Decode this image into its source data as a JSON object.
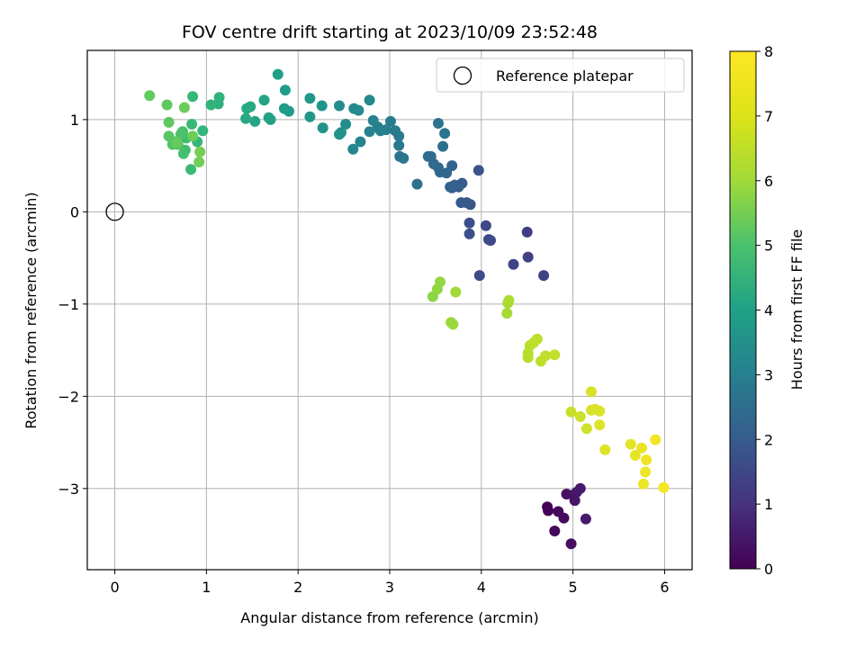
{
  "chart_data": {
    "type": "scatter",
    "title": "FOV centre drift starting at 2023/10/09 23:52:48",
    "xlabel": "Angular distance from reference (arcmin)",
    "ylabel": "Rotation from reference (arcmin)",
    "xlim": [
      -0.3,
      6.3
    ],
    "ylim": [
      -3.88,
      1.75
    ],
    "x_ticks": [
      0,
      1,
      2,
      3,
      4,
      5,
      6
    ],
    "y_ticks": [
      -3,
      -2,
      -1,
      0,
      1
    ],
    "x_tick_labels": [
      "0",
      "1",
      "2",
      "3",
      "4",
      "5",
      "6"
    ],
    "y_tick_labels": [
      "−3",
      "−2",
      "−1",
      "0",
      "1"
    ],
    "grid": true,
    "colormap": "viridis",
    "colorbar": {
      "label": "Hours from first FF file",
      "range": [
        0,
        8
      ],
      "ticks": [
        0,
        1,
        2,
        3,
        4,
        5,
        6,
        7,
        8
      ],
      "tick_labels": [
        "0",
        "1",
        "2",
        "3",
        "4",
        "5",
        "6",
        "7",
        "8"
      ]
    },
    "legend": {
      "position": "upper right",
      "entries": [
        {
          "label": "Reference platepar",
          "marker": "open-circle",
          "color": "#000000"
        }
      ]
    },
    "reference_point": {
      "x": 0,
      "y": 0
    },
    "points": [
      [
        4.72,
        -3.2,
        0.05
      ],
      [
        4.73,
        -3.24,
        0.1
      ],
      [
        4.8,
        -3.46,
        0.15
      ],
      [
        4.84,
        -3.25,
        0.2
      ],
      [
        4.9,
        -3.32,
        0.25
      ],
      [
        4.98,
        -3.6,
        0.3
      ],
      [
        4.93,
        -3.06,
        0.35
      ],
      [
        5.0,
        -3.07,
        0.4
      ],
      [
        5.02,
        -3.13,
        0.45
      ],
      [
        5.04,
        -3.04,
        0.5
      ],
      [
        5.08,
        -3.0,
        0.55
      ],
      [
        5.14,
        -3.33,
        0.6
      ],
      [
        4.5,
        -0.22,
        1.5
      ],
      [
        4.51,
        -0.49,
        1.55
      ],
      [
        4.68,
        -0.69,
        1.6
      ],
      [
        4.35,
        -0.57,
        1.65
      ],
      [
        4.1,
        -0.31,
        1.7
      ],
      [
        4.05,
        -0.15,
        1.75
      ],
      [
        4.08,
        -0.3,
        1.8
      ],
      [
        3.98,
        -0.69,
        1.85
      ],
      [
        3.87,
        -0.12,
        1.9
      ],
      [
        3.87,
        -0.24,
        1.95
      ],
      [
        3.97,
        0.45,
        2.1
      ],
      [
        3.88,
        0.08,
        2.15
      ],
      [
        3.84,
        0.1,
        2.2
      ],
      [
        3.78,
        0.1,
        2.25
      ],
      [
        3.79,
        0.31,
        2.3
      ],
      [
        3.75,
        0.27,
        2.35
      ],
      [
        3.71,
        0.29,
        2.4
      ],
      [
        3.68,
        0.26,
        2.45
      ],
      [
        3.66,
        0.27,
        2.5
      ],
      [
        3.68,
        0.5,
        2.55
      ],
      [
        3.62,
        0.42,
        2.6
      ],
      [
        3.55,
        0.43,
        2.65
      ],
      [
        3.53,
        0.48,
        2.7
      ],
      [
        3.48,
        0.52,
        2.75
      ],
      [
        3.45,
        0.6,
        2.8
      ],
      [
        3.42,
        0.6,
        2.85
      ],
      [
        3.3,
        0.3,
        2.9
      ],
      [
        3.58,
        0.71,
        2.95
      ],
      [
        3.6,
        0.85,
        3.0
      ],
      [
        3.53,
        0.96,
        3.05
      ],
      [
        3.15,
        0.58,
        3.1
      ],
      [
        3.11,
        0.6,
        3.15
      ],
      [
        3.1,
        0.72,
        3.2
      ],
      [
        3.1,
        0.82,
        3.25
      ],
      [
        3.06,
        0.88,
        3.3
      ],
      [
        3.01,
        0.98,
        3.35
      ],
      [
        2.96,
        0.89,
        3.4
      ],
      [
        2.9,
        0.88,
        3.45
      ],
      [
        2.87,
        0.92,
        3.5
      ],
      [
        2.82,
        0.99,
        3.55
      ],
      [
        2.78,
        0.87,
        3.6
      ],
      [
        2.68,
        0.76,
        3.65
      ],
      [
        2.6,
        0.68,
        3.7
      ],
      [
        2.78,
        1.21,
        3.75
      ],
      [
        2.66,
        1.1,
        3.8
      ],
      [
        2.61,
        1.12,
        3.85
      ],
      [
        2.45,
        1.15,
        3.9
      ],
      [
        2.52,
        0.95,
        3.95
      ],
      [
        2.47,
        0.86,
        4.0
      ],
      [
        2.45,
        0.84,
        4.05
      ],
      [
        2.27,
        0.91,
        4.1
      ],
      [
        2.26,
        1.15,
        4.15
      ],
      [
        2.13,
        1.03,
        4.2
      ],
      [
        2.13,
        1.23,
        4.25
      ],
      [
        1.9,
        1.09,
        4.35
      ],
      [
        1.85,
        1.12,
        4.4
      ],
      [
        1.86,
        1.32,
        4.45
      ],
      [
        1.78,
        1.49,
        4.5
      ],
      [
        1.7,
        1.0,
        4.55
      ],
      [
        1.68,
        1.02,
        4.6
      ],
      [
        1.63,
        1.21,
        4.65
      ],
      [
        1.53,
        0.98,
        4.7
      ],
      [
        1.48,
        1.14,
        4.75
      ],
      [
        1.43,
        1.01,
        4.8
      ],
      [
        1.44,
        1.12,
        4.85
      ],
      [
        1.13,
        1.17,
        5.1
      ],
      [
        1.14,
        1.24,
        5.15
      ],
      [
        1.05,
        1.16,
        5.2
      ],
      [
        0.96,
        0.88,
        5.25
      ],
      [
        0.9,
        0.76,
        5.3
      ],
      [
        0.85,
        1.25,
        5.35
      ],
      [
        0.84,
        0.95,
        5.4
      ],
      [
        0.83,
        0.46,
        5.45
      ],
      [
        0.78,
        0.8,
        5.5
      ],
      [
        0.77,
        0.67,
        5.55
      ],
      [
        0.75,
        0.63,
        5.6
      ],
      [
        0.74,
        0.87,
        5.65
      ],
      [
        0.72,
        0.84,
        5.7
      ],
      [
        0.69,
        0.73,
        5.75
      ],
      [
        0.66,
        0.76,
        5.8
      ],
      [
        0.63,
        0.73,
        5.85
      ],
      [
        0.59,
        0.82,
        5.9
      ],
      [
        0.59,
        0.97,
        5.95
      ],
      [
        0.57,
        1.16,
        6.0
      ],
      [
        0.38,
        1.26,
        6.05
      ],
      [
        0.68,
        0.75,
        6.1
      ],
      [
        0.76,
        1.13,
        6.15
      ],
      [
        0.85,
        0.82,
        6.2
      ],
      [
        0.92,
        0.54,
        6.25
      ],
      [
        0.93,
        0.65,
        6.3
      ],
      [
        3.47,
        -0.92,
        6.6
      ],
      [
        3.52,
        -0.84,
        6.65
      ],
      [
        3.55,
        -0.76,
        6.7
      ],
      [
        3.67,
        -1.2,
        6.75
      ],
      [
        3.69,
        -1.22,
        6.8
      ],
      [
        3.72,
        -0.87,
        6.85
      ],
      [
        4.28,
        -1.1,
        6.9
      ],
      [
        4.29,
        -0.99,
        6.95
      ],
      [
        4.3,
        -0.96,
        7.0
      ],
      [
        4.51,
        -1.58,
        7.1
      ],
      [
        4.51,
        -1.53,
        7.12
      ],
      [
        4.53,
        -1.45,
        7.15
      ],
      [
        4.57,
        -1.42,
        7.18
      ],
      [
        4.61,
        -1.38,
        7.2
      ],
      [
        4.65,
        -1.62,
        7.22
      ],
      [
        4.7,
        -1.56,
        7.25
      ],
      [
        4.8,
        -1.55,
        7.28
      ],
      [
        4.98,
        -2.17,
        7.35
      ],
      [
        5.08,
        -2.22,
        7.4
      ],
      [
        5.15,
        -2.35,
        7.45
      ],
      [
        5.2,
        -1.95,
        7.5
      ],
      [
        5.2,
        -2.15,
        7.52
      ],
      [
        5.24,
        -2.14,
        7.55
      ],
      [
        5.29,
        -2.16,
        7.58
      ],
      [
        5.29,
        -2.31,
        7.6
      ],
      [
        5.35,
        -2.58,
        7.62
      ],
      [
        5.63,
        -2.52,
        7.7
      ],
      [
        5.68,
        -2.64,
        7.72
      ],
      [
        5.75,
        -2.56,
        7.75
      ],
      [
        5.77,
        -2.95,
        7.78
      ],
      [
        5.79,
        -2.82,
        7.8
      ],
      [
        5.8,
        -2.69,
        7.83
      ],
      [
        5.9,
        -2.47,
        7.86
      ],
      [
        5.99,
        -2.99,
        7.9
      ]
    ]
  }
}
